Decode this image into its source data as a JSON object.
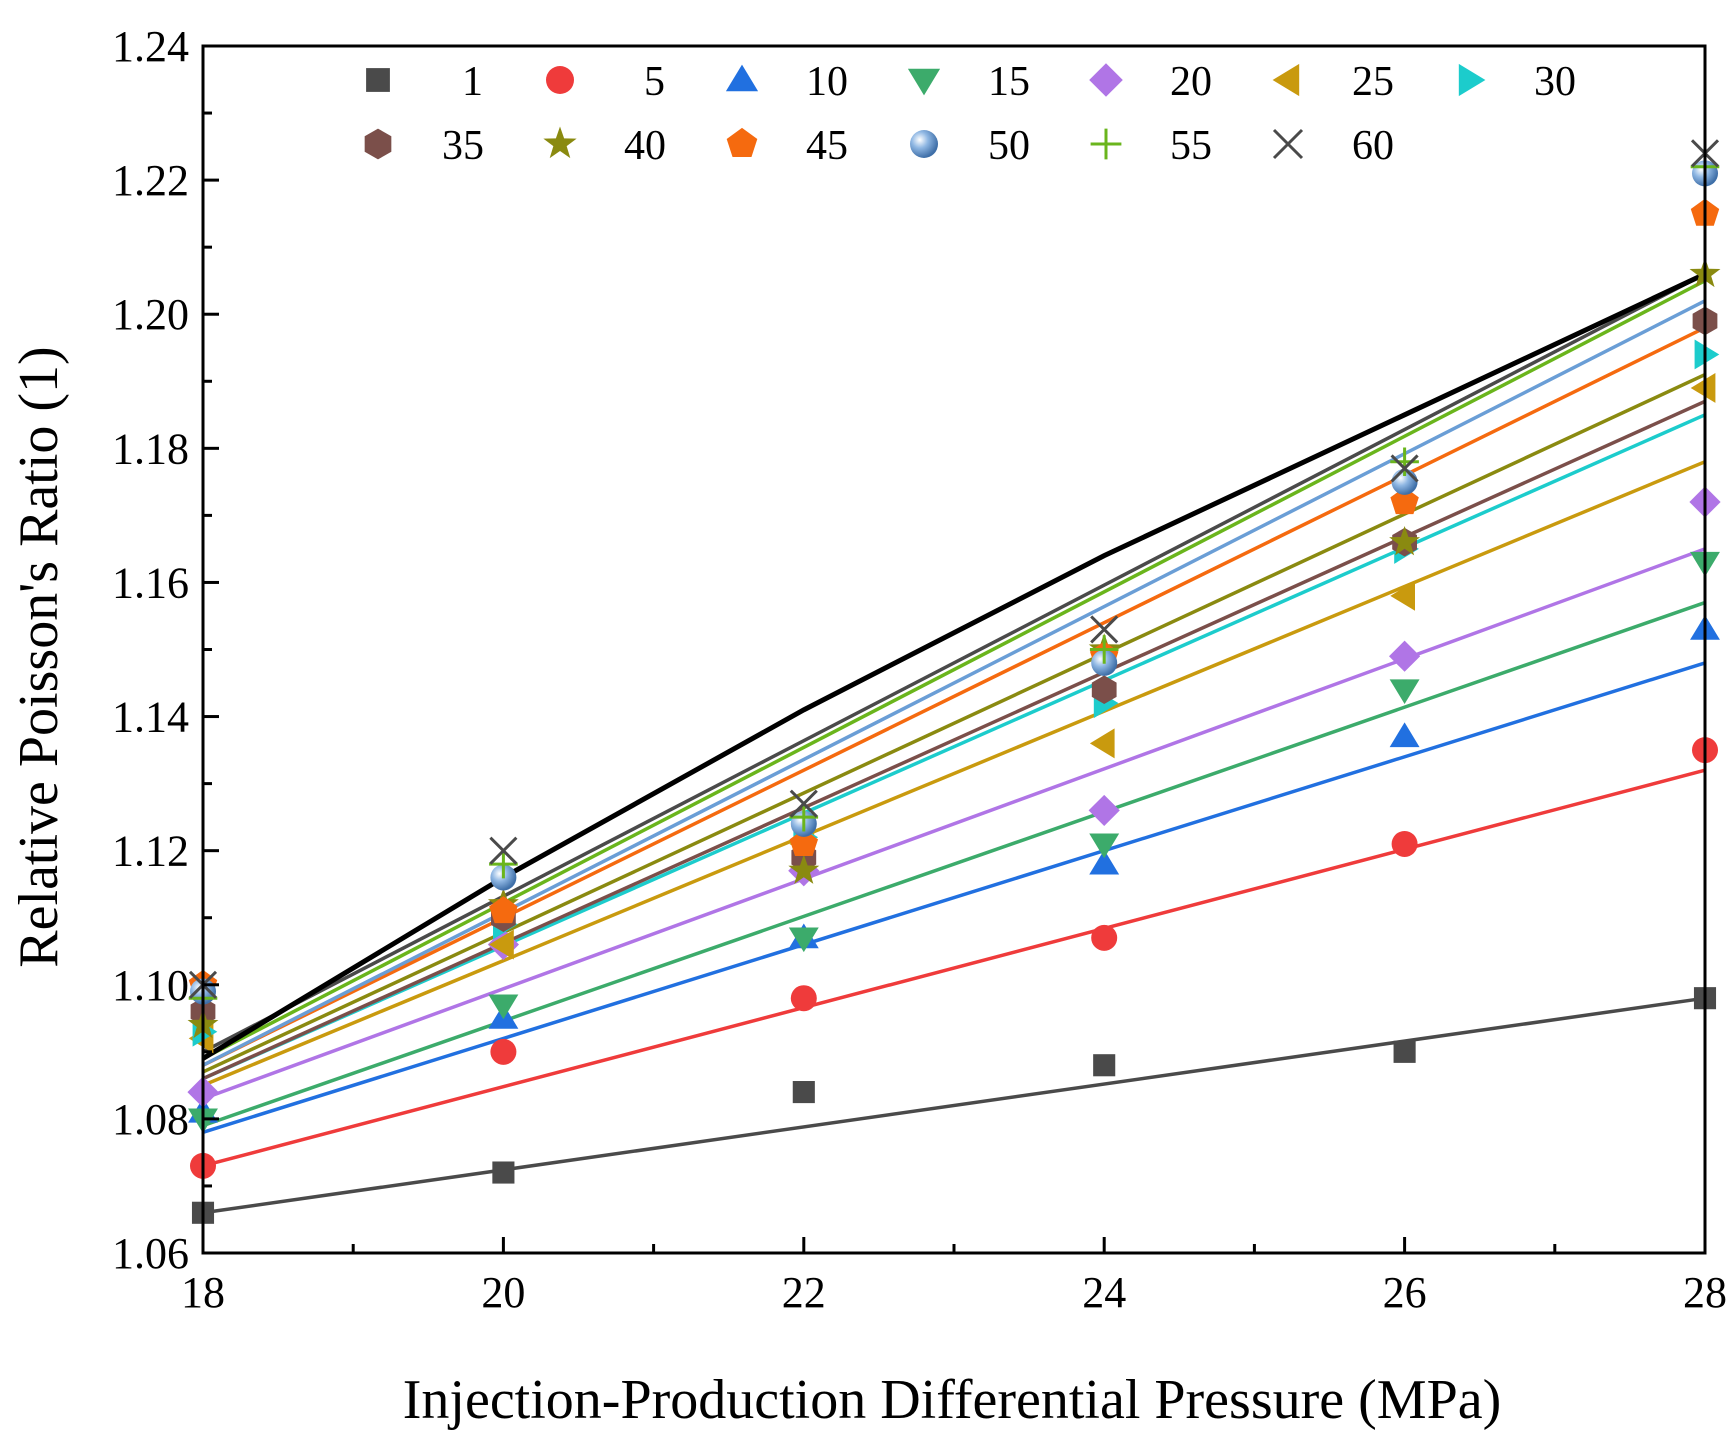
{
  "chart_data": {
    "type": "scatter",
    "title": "",
    "xlabel": "Injection-Production Differential Pressure (MPa)",
    "ylabel": "Relative Poisson's Ratio (1)",
    "xlim": [
      18,
      28
    ],
    "ylim": [
      1.06,
      1.24
    ],
    "xticks": [
      18,
      20,
      22,
      24,
      26,
      28
    ],
    "xtick_labels": [
      "18",
      "20",
      "22",
      "24",
      "26",
      "28"
    ],
    "yticks": [
      1.06,
      1.08,
      1.1,
      1.12,
      1.14,
      1.16,
      1.18,
      1.2,
      1.22,
      1.24
    ],
    "ytick_labels": [
      "1.06",
      "1.08",
      "1.10",
      "1.12",
      "1.14",
      "1.16",
      "1.18",
      "1.20",
      "1.22",
      "1.24"
    ],
    "legend_position": "top",
    "x": [
      18,
      20,
      22,
      24,
      26,
      28
    ],
    "series": [
      {
        "name": "1",
        "marker": "square",
        "color": "#4a4a4a",
        "values": [
          1.066,
          1.072,
          1.084,
          1.088,
          1.09,
          1.098
        ],
        "fit": [
          1.066,
          1.098
        ]
      },
      {
        "name": "5",
        "marker": "circle",
        "color": "#ef3b3b",
        "values": [
          1.073,
          1.09,
          1.098,
          1.107,
          1.121,
          1.135
        ],
        "fit": [
          1.073,
          1.132
        ]
      },
      {
        "name": "10",
        "marker": "triangle-up",
        "color": "#2170e0",
        "values": [
          1.081,
          1.095,
          1.107,
          1.118,
          1.137,
          1.153
        ],
        "fit": [
          1.078,
          1.148
        ]
      },
      {
        "name": "15",
        "marker": "triangle-down",
        "color": "#3cab6b",
        "values": [
          1.08,
          1.097,
          1.107,
          1.121,
          1.144,
          1.163
        ],
        "fit": [
          1.079,
          1.157
        ]
      },
      {
        "name": "20",
        "marker": "diamond",
        "color": "#b075e6",
        "values": [
          1.084,
          1.106,
          1.117,
          1.126,
          1.149,
          1.172
        ],
        "fit": [
          1.083,
          1.165
        ]
      },
      {
        "name": "25",
        "marker": "triangle-left",
        "color": "#c99a0e",
        "values": [
          1.092,
          1.106,
          1.121,
          1.136,
          1.158,
          1.189
        ],
        "fit": [
          1.085,
          1.178
        ]
      },
      {
        "name": "30",
        "marker": "triangle-right",
        "color": "#1ccccc",
        "values": [
          1.093,
          1.109,
          1.122,
          1.142,
          1.165,
          1.194
        ],
        "fit": [
          1.086,
          1.185
        ]
      },
      {
        "name": "35",
        "marker": "hexagon",
        "color": "#7b4f4a",
        "values": [
          1.096,
          1.11,
          1.119,
          1.144,
          1.166,
          1.199
        ],
        "fit": [
          1.086,
          1.187
        ]
      },
      {
        "name": "40",
        "marker": "star",
        "color": "#8a8a10",
        "values": [
          1.094,
          1.112,
          1.117,
          1.15,
          1.166,
          1.206
        ],
        "fit": [
          1.087,
          1.191
        ]
      },
      {
        "name": "45",
        "marker": "pentagon",
        "color": "#f56a0f",
        "values": [
          1.1,
          1.111,
          1.121,
          1.149,
          1.172,
          1.215
        ],
        "fit": [
          1.088,
          1.198
        ]
      },
      {
        "name": "50",
        "marker": "sphere",
        "color": "#6a9ed6",
        "values": [
          1.099,
          1.116,
          1.124,
          1.148,
          1.175,
          1.221
        ],
        "fit": [
          1.088,
          1.202
        ]
      },
      {
        "name": "55",
        "marker": "plus",
        "color": "#6ab51c",
        "values": [
          1.098,
          1.118,
          1.125,
          1.15,
          1.178,
          1.222
        ],
        "fit": [
          1.089,
          1.205
        ]
      },
      {
        "name": "60",
        "marker": "cross",
        "color": "#4a4a4a",
        "values": [
          1.1,
          1.12,
          1.127,
          1.153,
          1.177,
          1.224
        ],
        "fit": [
          1.09,
          1.206
        ]
      }
    ],
    "envelope_line": {
      "color": "#000000",
      "values": [
        1.089,
        1.116,
        1.141,
        1.164,
        1.185,
        1.206
      ]
    }
  }
}
